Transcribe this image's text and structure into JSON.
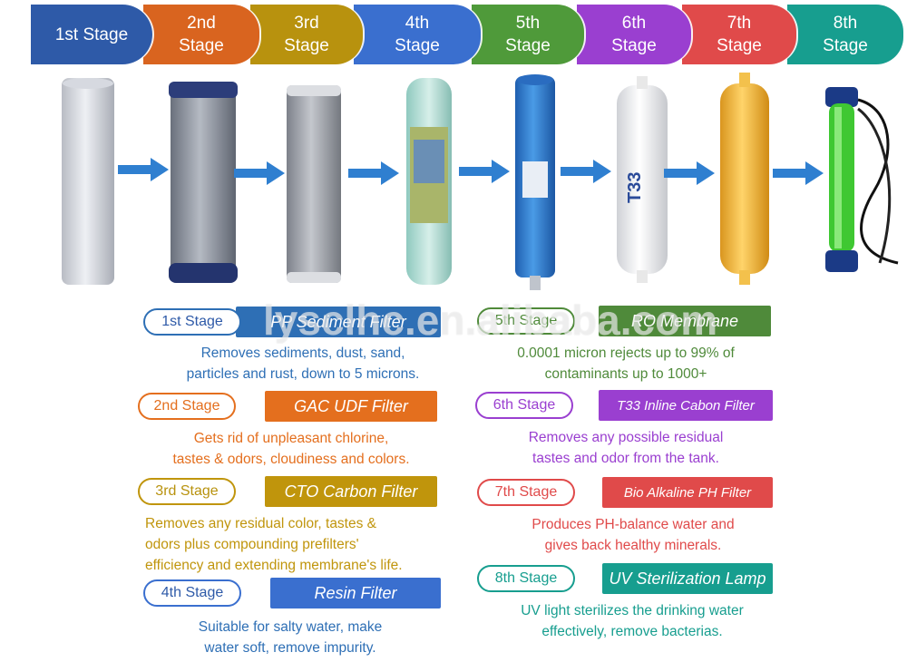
{
  "stages": [
    {
      "label": "1st Stage",
      "color": "#2e5aa8"
    },
    {
      "label": "2nd\nStage",
      "color": "#d9641f"
    },
    {
      "label": "3rd\nStage",
      "color": "#b8920e"
    },
    {
      "label": "4th\nStage",
      "color": "#3a6fcf"
    },
    {
      "label": "5th\nStage",
      "color": "#4f9a3a"
    },
    {
      "label": "6th\nStage",
      "color": "#9a3fd0"
    },
    {
      "label": "7th\nStage",
      "color": "#e04a4a"
    },
    {
      "label": "8th\nStage",
      "color": "#179e8f"
    }
  ],
  "products": [
    {
      "icon": "pp-sediment-cartridge-icon",
      "color": "#dcdfe6"
    },
    {
      "icon": "gac-udf-cartridge-icon",
      "color": "#8b919e"
    },
    {
      "icon": "cto-carbon-cartridge-icon",
      "color": "#a3a6ad"
    },
    {
      "icon": "resin-inline-cartridge-icon",
      "color": "#b9e0d8"
    },
    {
      "icon": "ro-membrane-icon",
      "color": "#2f7fd0"
    },
    {
      "icon": "t33-inline-filter-icon",
      "color": "#f4f4f4"
    },
    {
      "icon": "bio-alkaline-filter-icon",
      "color": "#f0b23a"
    },
    {
      "icon": "uv-sterilization-lamp-icon",
      "color": "#4ad23a"
    }
  ],
  "details": [
    {
      "stage": "1st Stage",
      "name": "PP Sediment Filter",
      "color": "#2e6fb5",
      "description": "Removes sediments, dust, sand,\nparticles and rust, down to 5 microns."
    },
    {
      "stage": "2nd Stage",
      "name": "GAC UDF Filter",
      "color": "#e46f1e",
      "description": "Gets rid of unpleasant chlorine,\ntastes & odors, cloudiness and colors."
    },
    {
      "stage": "3rd Stage",
      "name": "CTO Carbon Filter",
      "color": "#c0950c",
      "description": "Removes any residual color, tastes &\nodors plus compounding prefilters'\nefficiency and extending membrane's life."
    },
    {
      "stage": "4th Stage",
      "name": "Resin Filter",
      "color": "#3a6fcf",
      "description": "Suitable for salty water, make\nwater soft, remove impurity."
    },
    {
      "stage": "5th Stage",
      "name": "RO Membrane",
      "color": "#4f8a3a",
      "description": "0.0001 micron rejects up to 99% of\ncontaminants up to 1000+"
    },
    {
      "stage": "6th Stage",
      "name": "T33 Inline Cabon Filter",
      "color": "#9a3fd0",
      "description": "Removes any possible residual\ntastes and odor from the tank."
    },
    {
      "stage": "7th Stage",
      "name": "Bio Alkaline PH Filter",
      "color": "#e04a4a",
      "description": "Produces PH-balance water and\ngives back healthy minerals."
    },
    {
      "stage": "8th Stage",
      "name": "UV Sterilization Lamp",
      "color": "#179e8f",
      "description": "UV light sterilizes the drinking water\neffectively, remove bacterias."
    }
  ],
  "watermark": "lysclhc.en.alibaba.com",
  "arrow_color": "#2f7fd0"
}
